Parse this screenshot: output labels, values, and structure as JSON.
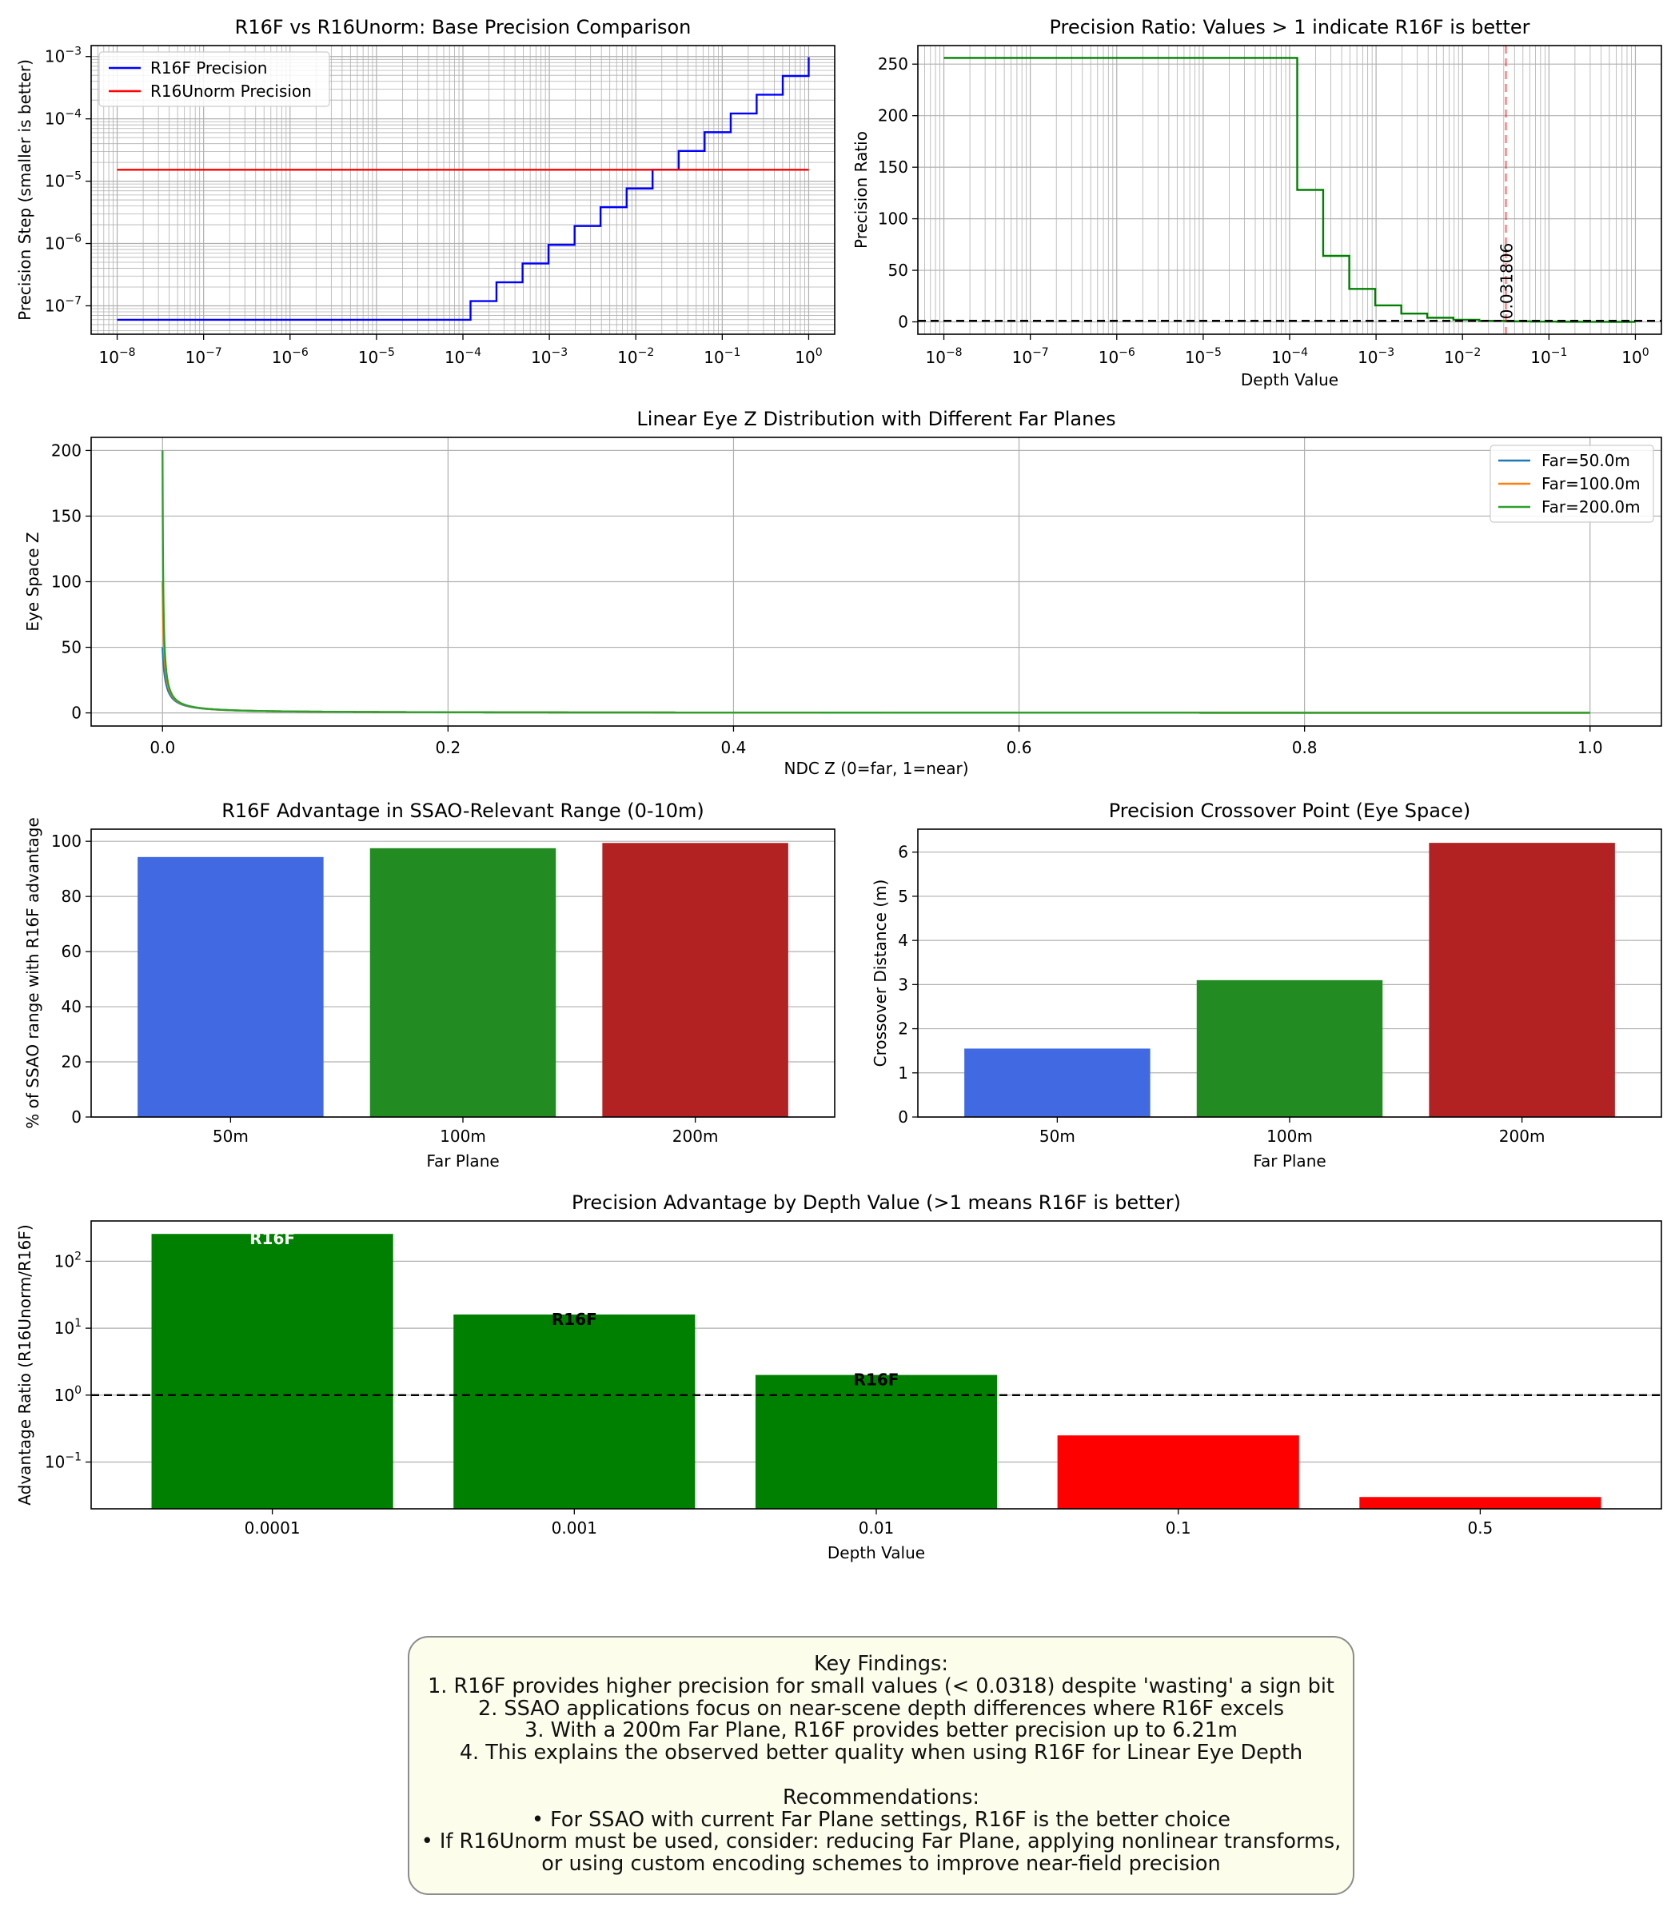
{
  "colors": {
    "blue": "#0000ff",
    "red": "#ff0000",
    "green": "#008000",
    "royalblue": "#4169e1",
    "forestgreen": "#228b22",
    "firebrick": "#b22222",
    "tab_blue": "#1f77b4",
    "tab_orange": "#ff7f0e",
    "tab_green": "#2ca02c",
    "grid": "#b0b0b0",
    "box_bg": "#fdfdeb"
  },
  "chart_data": [
    {
      "id": "base_precision",
      "type": "line",
      "title": "R16F vs R16Unorm: Base Precision Comparison",
      "xlabel": "",
      "ylabel": "Precision Step (smaller is better)",
      "xscale": "log",
      "yscale": "log",
      "xlim": [
        5e-09,
        2.0
      ],
      "ylim": [
        3.5e-08,
        0.0015
      ],
      "xticks": [
        1e-08,
        1e-07,
        1e-06,
        1e-05,
        0.0001,
        0.001,
        0.01,
        0.1,
        1.0
      ],
      "yticks": [
        1e-07,
        1e-06,
        1e-05,
        0.0001,
        0.001
      ],
      "grid": "both major and minor",
      "legend": "upper-left",
      "series": [
        {
          "name": "R16F Precision",
          "color": "#0000ff",
          "kind": "steps",
          "x_range": [
            1e-08,
            1.0
          ],
          "floor_value": 5.96e-08,
          "floor_until": 0.00012207,
          "step_start": 0.00012207,
          "step_start_value": 1.192e-07
        },
        {
          "name": "R16Unorm Precision",
          "color": "#ff0000",
          "kind": "constant",
          "x_range": [
            1e-08,
            1.0
          ],
          "value": 1.5259e-05
        }
      ]
    },
    {
      "id": "precision_ratio",
      "type": "line",
      "title": "Precision Ratio: Values > 1 indicate R16F is better",
      "xlabel": "Depth Value",
      "ylabel": "Precision Ratio",
      "xscale": "log",
      "yscale": "linear",
      "xlim": [
        5e-09,
        2.0
      ],
      "ylim": [
        -12,
        268
      ],
      "xticks": [
        1e-08,
        1e-07,
        1e-06,
        1e-05,
        0.0001,
        0.001,
        0.01,
        0.1,
        1.0
      ],
      "yticks": [
        0,
        50,
        100,
        150,
        200,
        250
      ],
      "grid": "both major and minor",
      "series": [
        {
          "name": "",
          "color": "#008000",
          "kind": "steps",
          "x_range": [
            1e-08,
            1.0
          ],
          "plateau": 256,
          "plateau_until": 0.00012207
        }
      ],
      "reference_line": {
        "y": 1,
        "style": "dashed",
        "color": "#000000"
      },
      "crossover_line": {
        "x": 0.031806,
        "style": "dashed",
        "color": "#ff0000"
      },
      "annotation": "0.031806"
    },
    {
      "id": "eye_z_distribution",
      "type": "line",
      "title": "Linear Eye Z Distribution with Different Far Planes",
      "xlabel": "NDC Z (0=far, 1=near)",
      "ylabel": "Eye Space Z",
      "xlim": [
        -0.05,
        1.05
      ],
      "ylim": [
        -10,
        210
      ],
      "xticks": [
        0.0,
        0.2,
        0.4,
        0.6,
        0.8,
        1.0
      ],
      "yticks": [
        0,
        50,
        100,
        150,
        200
      ],
      "grid": "major",
      "legend": "upper-right",
      "near": 0.1,
      "series": [
        {
          "name": "Far=50.0m",
          "far": 50,
          "color": "#1f77b4"
        },
        {
          "name": "Far=100.0m",
          "far": 100,
          "color": "#ff7f0e"
        },
        {
          "name": "Far=200.0m",
          "far": 200,
          "color": "#2ca02c"
        }
      ]
    },
    {
      "id": "ssao_advantage",
      "type": "bar",
      "title": "R16F Advantage in SSAO-Relevant Range (0-10m)",
      "xlabel": "Far Plane",
      "ylabel": "% of SSAO range with R16F advantage",
      "categories": [
        "50m",
        "100m",
        "200m"
      ],
      "values": [
        94.3,
        97.5,
        99.4
      ],
      "colors": [
        "#4169e1",
        "#228b22",
        "#b22222"
      ],
      "ylim": [
        0,
        104.4
      ],
      "yticks": [
        0,
        20,
        40,
        60,
        80,
        100
      ],
      "grid": "y"
    },
    {
      "id": "crossover_point",
      "type": "bar",
      "title": "Precision Crossover Point (Eye Space)",
      "xlabel": "Far Plane",
      "ylabel": "Crossover Distance (m)",
      "categories": [
        "50m",
        "100m",
        "200m"
      ],
      "values": [
        1.55,
        3.1,
        6.21
      ],
      "colors": [
        "#4169e1",
        "#228b22",
        "#b22222"
      ],
      "ylim": [
        0,
        6.52
      ],
      "yticks": [
        0,
        1,
        2,
        3,
        4,
        5,
        6
      ],
      "grid": "y"
    },
    {
      "id": "advantage_by_depth",
      "type": "bar",
      "title": "Precision Advantage by Depth Value (>1 means R16F is better)",
      "xlabel": "Depth Value",
      "ylabel": "Advantage Ratio (R16Unorm/R16F)",
      "yscale": "log",
      "categories": [
        "0.0001",
        "0.001",
        "0.01",
        "0.1",
        "0.5"
      ],
      "values": [
        256,
        16,
        2,
        0.25,
        0.03
      ],
      "colors": [
        "#008000",
        "#008000",
        "#008000",
        "#ff0000",
        "#ff0000"
      ],
      "bar_labels": [
        "R16F",
        "R16F",
        "R16F",
        "",
        ""
      ],
      "bar_label_colors": [
        "#ffffff",
        "#000000",
        "#000000",
        "",
        ""
      ],
      "ylim": [
        0.02,
        400
      ],
      "yticks": [
        0.1,
        1,
        10,
        100
      ],
      "reference_line": {
        "y": 1,
        "style": "dashed",
        "color": "#000000"
      },
      "grid": "y"
    }
  ],
  "findings": {
    "lines": [
      "Key Findings:",
      "1. R16F provides higher precision for small values (< 0.0318) despite 'wasting' a sign bit",
      "2. SSAO applications focus on near-scene depth differences where R16F excels",
      "3. With a 200m Far Plane, R16F provides better precision up to 6.21m",
      "4. This explains the observed better quality when using R16F for Linear Eye Depth",
      "",
      "Recommendations:",
      "• For SSAO with current Far Plane settings, R16F is the better choice",
      "• If R16Unorm must be used, consider: reducing Far Plane, applying nonlinear transforms,",
      "or using custom encoding schemes to improve near-field precision"
    ]
  }
}
